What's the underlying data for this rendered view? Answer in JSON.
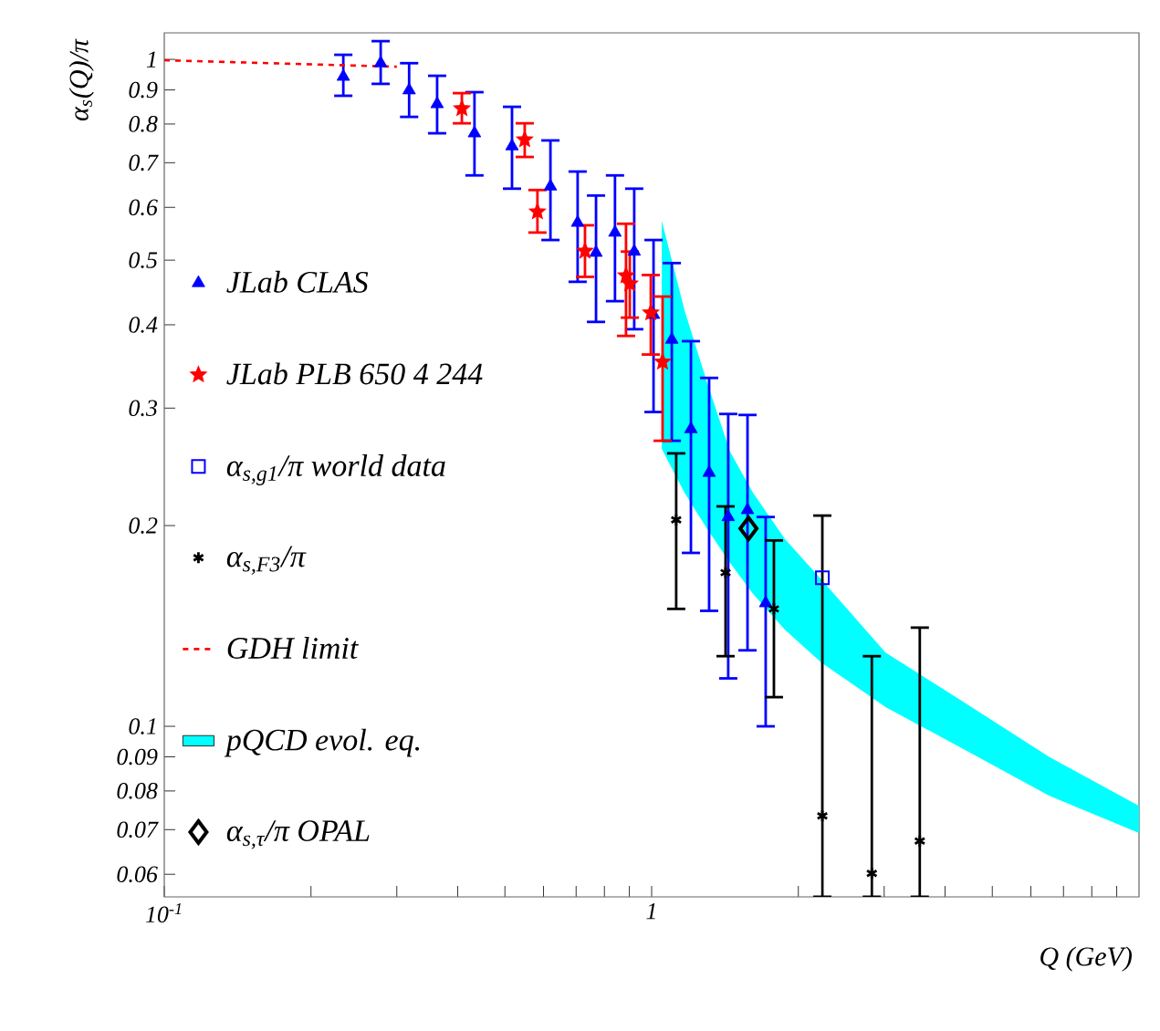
{
  "chart_data": {
    "type": "scatter",
    "xlabel": "Q (GeV)",
    "ylabel": "α$_{s}$(Q)/π",
    "log": "xy",
    "grid": false,
    "legend": "bottom left",
    "xlim": [
      0.1,
      10
    ],
    "ylim": [
      0.0555,
      1.096
    ],
    "xticks": [
      {
        "value": 0.1,
        "label": "10$^{-1}$"
      },
      {
        "value": 0.2,
        "label": null
      },
      {
        "value": 0.3,
        "label": null
      },
      {
        "value": 0.4,
        "label": null
      },
      {
        "value": 0.5,
        "label": null
      },
      {
        "value": 0.6,
        "label": null
      },
      {
        "value": 0.7,
        "label": null
      },
      {
        "value": 0.8,
        "label": null
      },
      {
        "value": 0.9,
        "label": null
      },
      1,
      {
        "value": 2,
        "label": null
      },
      {
        "value": 3,
        "label": null
      },
      {
        "value": 4,
        "label": null
      },
      {
        "value": 5,
        "label": null
      },
      {
        "value": 6,
        "label": null
      },
      {
        "value": 7,
        "label": null
      },
      {
        "value": 8,
        "label": null
      },
      {
        "value": 9,
        "label": null
      }
    ],
    "yticks": [
      0.06,
      0.07,
      0.08,
      0.09,
      0.1,
      0.2,
      0.3,
      0.4,
      0.5,
      0.6,
      0.7,
      0.8,
      0.9,
      1
    ],
    "series": [
      {
        "name": "JLab CLAS",
        "marker": "triangle",
        "color": "#0000ff",
        "x": [
          0.233,
          0.278,
          0.318,
          0.363,
          0.433,
          0.517,
          0.62,
          0.705,
          0.769,
          0.841,
          0.921,
          1.009,
          1.1,
          1.204,
          1.312,
          1.436,
          1.573,
          1.714
        ],
        "values": [
          0.942,
          0.987,
          0.899,
          0.857,
          0.775,
          0.741,
          0.645,
          0.569,
          0.513,
          0.55,
          0.515,
          0.414,
          0.38,
          0.279,
          0.24,
          0.206,
          0.211,
          0.153
        ],
        "errors": [
          [
            0.882,
            1.016
          ],
          [
            0.919,
            1.065
          ],
          [
            0.82,
            0.987
          ],
          [
            0.775,
            0.945
          ],
          [
            0.67,
            0.893
          ],
          [
            0.64,
            0.849
          ],
          [
            0.536,
            0.756
          ],
          [
            0.464,
            0.679
          ],
          [
            0.404,
            0.625
          ],
          [
            0.434,
            0.67
          ],
          [
            0.394,
            0.64
          ],
          [
            0.296,
            0.536
          ],
          [
            0.268,
            0.495
          ],
          [
            0.182,
            0.378
          ],
          [
            0.149,
            0.333
          ],
          [
            0.118,
            0.294
          ],
          [
            0.13,
            0.293
          ],
          [
            0.1,
            0.206
          ]
        ]
      },
      {
        "name": "JLab PLB 650 4 244",
        "marker": "star",
        "color": "#ff0000",
        "x": [
          0.408,
          0.549,
          0.583,
          0.73,
          0.886,
          0.902,
          0.996,
          1.053
        ],
        "values": [
          0.844,
          0.758,
          0.591,
          0.516,
          0.474,
          0.461,
          0.417,
          0.352
        ],
        "errors": [
          [
            0.802,
            0.89
          ],
          [
            0.714,
            0.802
          ],
          [
            0.55,
            0.637
          ],
          [
            0.472,
            0.564
          ],
          [
            0.385,
            0.567
          ],
          [
            0.41,
            0.515
          ],
          [
            0.361,
            0.475
          ],
          [
            0.268,
            0.441
          ]
        ]
      },
      {
        "name": "α$_{s,g1}$/π world data",
        "marker": "square",
        "color": "#0000ff",
        "x": [
          2.24
        ],
        "values": [
          0.167
        ]
      },
      {
        "name": "α$_{s,F3}$/π",
        "marker": "cross",
        "color": "#000000",
        "x": [
          1.123,
          1.418,
          1.782,
          2.24,
          2.83,
          3.55
        ],
        "values": [
          0.204,
          0.17,
          0.15,
          0.0734,
          0.0602,
          0.0673
        ],
        "errors": [
          [
            0.15,
            0.2566
          ],
          [
            0.1274,
            0.2137
          ],
          [
            0.1106,
            0.19
          ],
          [
            0.0555,
            0.207
          ],
          [
            0.0555,
            0.1274
          ],
          [
            0.0555,
            0.1406
          ]
        ]
      },
      {
        "name": "GDH limit",
        "type": "line",
        "line_style": "dashed",
        "marker": "none",
        "color": "#ff0000",
        "x": [
          0.1,
          0.3
        ],
        "values": [
          0.997,
          0.975
        ]
      },
      {
        "name": "pQCD evol. eq.",
        "type": "area",
        "color": "#00ffff",
        "x": [
          1.049,
          1.168,
          1.301,
          1.449,
          1.614,
          1.877,
          2.23,
          3.02,
          4.26,
          6.55,
          10
        ],
        "lower": [
          0.2606,
          0.224,
          0.1975,
          0.1758,
          0.158,
          0.1396,
          0.1246,
          0.1069,
          0.0933,
          0.0787,
          0.0692
        ],
        "values": [
          null,
          null,
          null,
          null,
          null,
          null,
          null,
          null,
          null,
          null,
          null
        ],
        "upper": [
          0.573,
          0.4205,
          0.327,
          0.258,
          0.224,
          0.191,
          0.166,
          0.129,
          0.11,
          0.0899,
          0.076
        ]
      },
      {
        "name": "α$_{s,τ}$/π OPAL",
        "marker": "diamond",
        "color": "#000000",
        "x": [
          1.58
        ],
        "values": [
          0.198
        ]
      }
    ]
  }
}
